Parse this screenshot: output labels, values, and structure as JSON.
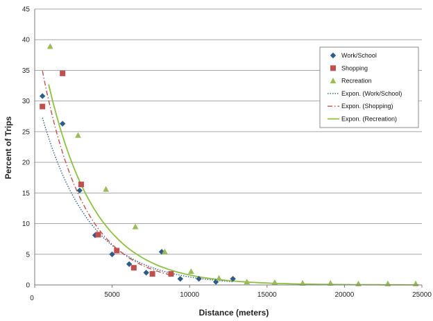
{
  "chart_data": {
    "type": "scatter",
    "xlabel": "Distance (meters)",
    "ylabel": "Percent of Trips",
    "xlim": [
      0,
      25000
    ],
    "ylim": [
      0,
      45
    ],
    "x_ticks": [
      "0",
      "5000",
      "10000",
      "15000",
      "20000",
      "25000"
    ],
    "y_ticks": [
      "0",
      "5",
      "10",
      "15",
      "20",
      "25",
      "30",
      "35",
      "40",
      "45"
    ],
    "grid": "horizontal",
    "legend_position": "top-right",
    "series": [
      {
        "name": "Work/School",
        "marker": "diamond",
        "color": "#2e5c8a",
        "points": [
          [
            500,
            30.8
          ],
          [
            1800,
            26.3
          ],
          [
            2900,
            15.4
          ],
          [
            3900,
            8.1
          ],
          [
            5000,
            5.0
          ],
          [
            6100,
            3.4
          ],
          [
            7200,
            2.0
          ],
          [
            8200,
            5.4
          ],
          [
            9400,
            1.0
          ],
          [
            10600,
            1.0
          ],
          [
            11700,
            0.5
          ],
          [
            12800,
            1.0
          ]
        ]
      },
      {
        "name": "Shopping",
        "marker": "square",
        "color": "#c0504d",
        "points": [
          [
            500,
            29.1
          ],
          [
            1800,
            34.5
          ],
          [
            3000,
            16.4
          ],
          [
            4100,
            8.2
          ],
          [
            5300,
            5.6
          ],
          [
            6400,
            2.8
          ],
          [
            7600,
            1.8
          ],
          [
            8800,
            1.8
          ]
        ]
      },
      {
        "name": "Recreation",
        "marker": "triangle",
        "color": "#9bbb59",
        "points": [
          [
            1000,
            38.9
          ],
          [
            2800,
            24.4
          ],
          [
            4600,
            15.6
          ],
          [
            6500,
            9.5
          ],
          [
            8400,
            5.4
          ],
          [
            10100,
            2.2
          ],
          [
            11900,
            1.1
          ],
          [
            13700,
            0.5
          ],
          [
            15500,
            0.4
          ],
          [
            17300,
            0.3
          ],
          [
            19100,
            0.3
          ],
          [
            20900,
            0.2
          ],
          [
            22800,
            0.2
          ],
          [
            24600,
            0.2
          ]
        ]
      }
    ],
    "trendlines": [
      {
        "name": "Expon. (Work/School)",
        "style": "dotted",
        "color": "#2e5c8a",
        "a": 32.0,
        "b": 0.00032,
        "x_range": [
          500,
          12800
        ]
      },
      {
        "name": "Expon. (Shopping)",
        "style": "dash-dot",
        "color": "#c0504d",
        "a": 42.0,
        "b": 0.00037,
        "x_range": [
          500,
          8800
        ]
      },
      {
        "name": "Expon. (Recreation)",
        "style": "solid",
        "color": "#8dbf3f",
        "a": 44.0,
        "b": 0.00033,
        "x_range": [
          900,
          24800
        ]
      }
    ]
  }
}
